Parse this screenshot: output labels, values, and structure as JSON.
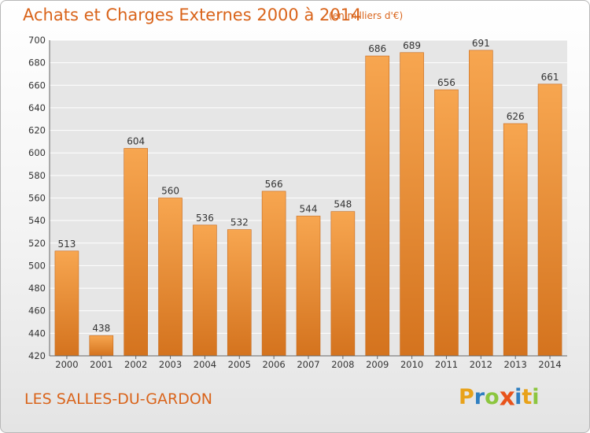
{
  "title": "Achats et Charges Externes 2000 à 2014",
  "unit_note": "(en milliers d'€)",
  "commune": "LES SALLES-DU-GARDON",
  "logo": {
    "letters": [
      "P",
      "r",
      "o",
      "x",
      "i",
      "t",
      "i"
    ],
    "colors": [
      "#e8a21a",
      "#2f7fc1",
      "#8cc63f",
      "#e8531b",
      "#2f7fc1",
      "#e8a21a",
      "#8cc63f"
    ]
  },
  "colors": {
    "accent": "#d9641b",
    "bar_top": "#f7a650",
    "bar_bottom": "#d4731e",
    "grid": "#ffffff",
    "plot_bg": "#e6e6e6"
  },
  "chart_data": {
    "type": "bar",
    "categories": [
      "2000",
      "2001",
      "2002",
      "2003",
      "2004",
      "2005",
      "2006",
      "2007",
      "2008",
      "2009",
      "2010",
      "2011",
      "2012",
      "2013",
      "2014"
    ],
    "values": [
      513,
      438,
      604,
      560,
      536,
      532,
      566,
      544,
      548,
      686,
      689,
      656,
      691,
      626,
      661
    ],
    "title": "Achats et Charges Externes 2000 à 2014",
    "xlabel": "",
    "ylabel": "",
    "ylim": [
      420,
      700
    ],
    "yticks": [
      "420",
      "440",
      "460",
      "480",
      "500",
      "520",
      "540",
      "560",
      "580",
      "600",
      "620",
      "640",
      "660",
      "680",
      "700"
    ],
    "grid": true,
    "legend": "none"
  }
}
